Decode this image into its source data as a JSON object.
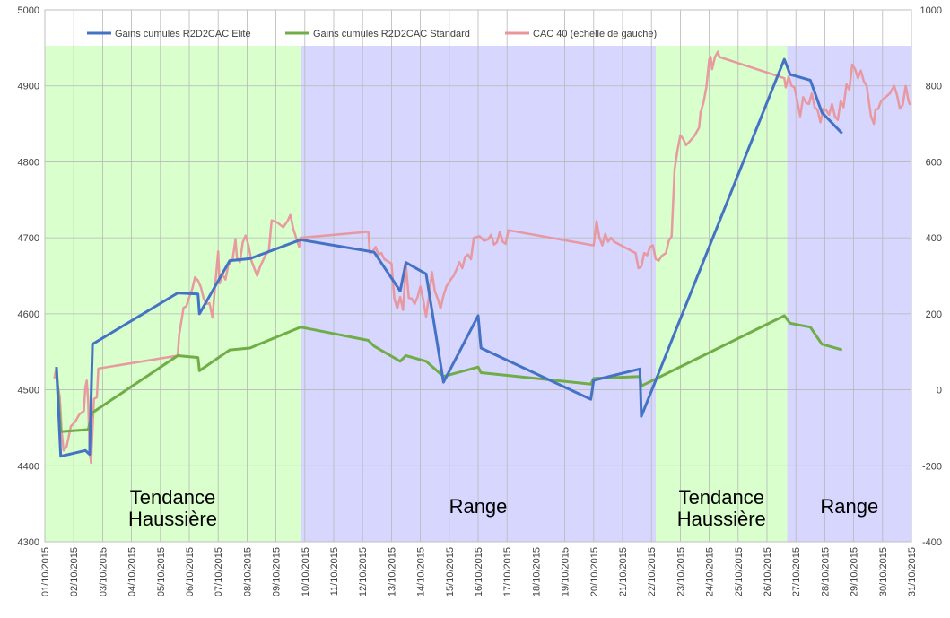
{
  "chart_data": {
    "type": "line",
    "x_axis": {
      "labels": [
        "01/10/2015",
        "02/10/2015",
        "03/10/2015",
        "04/10/2015",
        "05/10/2015",
        "06/10/2015",
        "07/10/2015",
        "08/10/2015",
        "09/10/2015",
        "10/10/2015",
        "11/10/2015",
        "12/10/2015",
        "13/10/2015",
        "14/10/2015",
        "15/10/2015",
        "16/10/2015",
        "17/10/2015",
        "18/10/2015",
        "19/10/2015",
        "20/10/2015",
        "21/10/2015",
        "22/10/2015",
        "23/10/2015",
        "24/10/2015",
        "25/10/2015",
        "26/10/2015",
        "27/10/2015",
        "28/10/2015",
        "29/10/2015",
        "30/10/2015",
        "31/10/2015"
      ],
      "xlim": [
        1,
        31
      ]
    },
    "y_left": {
      "ylim": [
        4300,
        5000
      ],
      "ticks": [
        "4300",
        "4400",
        "4500",
        "4600",
        "4700",
        "4800",
        "4900",
        "5000"
      ]
    },
    "y_right": {
      "ylim": [
        -400,
        1000
      ],
      "ticks": [
        "-400",
        "-200",
        "0",
        "200",
        "400",
        "600",
        "800",
        "1000"
      ]
    },
    "grid": true,
    "legend_position": "top",
    "zones": [
      {
        "label": [
          "Tendance",
          "Haussière"
        ],
        "start": 1.0,
        "end": 9.85,
        "color": "#d9ffcc"
      },
      {
        "label": [
          "Range"
        ],
        "start": 9.85,
        "end": 22.15,
        "color": "#d6d6ff"
      },
      {
        "label": [
          "Tendance",
          "Haussière"
        ],
        "start": 22.15,
        "end": 26.7,
        "color": "#d9ffcc"
      },
      {
        "label": [
          "Range"
        ],
        "start": 26.7,
        "end": 31.0,
        "color": "#d6d6ff"
      }
    ],
    "series": [
      {
        "name": "Gains cumulés R2D2CAC Elite",
        "axis": "right",
        "color": "#4472c4",
        "points": [
          [
            1.4,
            60
          ],
          [
            1.55,
            -175
          ],
          [
            2.4,
            -160
          ],
          [
            2.55,
            -170
          ],
          [
            2.65,
            120
          ],
          [
            5.6,
            255
          ],
          [
            6.3,
            252
          ],
          [
            6.35,
            200
          ],
          [
            7.4,
            340
          ],
          [
            8.1,
            345
          ],
          [
            9.85,
            395
          ],
          [
            12.2,
            365
          ],
          [
            12.4,
            362
          ],
          [
            13.3,
            260
          ],
          [
            13.5,
            335
          ],
          [
            14.2,
            305
          ],
          [
            14.8,
            20
          ],
          [
            16.0,
            195
          ],
          [
            16.1,
            110
          ],
          [
            19.9,
            -25
          ],
          [
            20.0,
            25
          ],
          [
            21.6,
            55
          ],
          [
            21.65,
            -70
          ],
          [
            26.6,
            870
          ],
          [
            26.8,
            830
          ],
          [
            27.5,
            815
          ],
          [
            27.9,
            730
          ],
          [
            28.6,
            675
          ]
        ]
      },
      {
        "name": "Gains cumulés R2D2CAC Standard",
        "axis": "right",
        "color": "#70ad47",
        "points": [
          [
            1.4,
            60
          ],
          [
            1.55,
            -110
          ],
          [
            2.5,
            -105
          ],
          [
            2.65,
            -60
          ],
          [
            5.6,
            90
          ],
          [
            6.3,
            85
          ],
          [
            6.35,
            50
          ],
          [
            7.4,
            105
          ],
          [
            8.1,
            110
          ],
          [
            9.85,
            165
          ],
          [
            12.2,
            130
          ],
          [
            12.4,
            115
          ],
          [
            13.3,
            75
          ],
          [
            13.5,
            90
          ],
          [
            14.2,
            75
          ],
          [
            14.8,
            35
          ],
          [
            16.0,
            60
          ],
          [
            16.1,
            45
          ],
          [
            19.9,
            15
          ],
          [
            20.0,
            30
          ],
          [
            21.6,
            35
          ],
          [
            21.65,
            10
          ],
          [
            26.6,
            195
          ],
          [
            26.8,
            175
          ],
          [
            27.5,
            165
          ],
          [
            27.9,
            120
          ],
          [
            28.6,
            105
          ]
        ]
      },
      {
        "name": "CAC 40 (échelle de gauche)",
        "axis": "left",
        "color": "#e8959c",
        "points": [
          [
            1.33,
            4515
          ],
          [
            1.38,
            4525
          ],
          [
            1.45,
            4505
          ],
          [
            1.52,
            4490
          ],
          [
            1.58,
            4445
          ],
          [
            1.65,
            4420
          ],
          [
            1.75,
            4425
          ],
          [
            1.9,
            4452
          ],
          [
            2.05,
            4458
          ],
          [
            2.2,
            4468
          ],
          [
            2.35,
            4472
          ],
          [
            2.4,
            4503
          ],
          [
            2.45,
            4512
          ],
          [
            2.5,
            4485
          ],
          [
            2.55,
            4418
          ],
          [
            2.6,
            4404
          ],
          [
            2.7,
            4488
          ],
          [
            2.8,
            4490
          ],
          [
            2.85,
            4528
          ],
          [
            5.6,
            4545
          ],
          [
            5.65,
            4572
          ],
          [
            5.8,
            4608
          ],
          [
            5.9,
            4610
          ],
          [
            6.0,
            4622
          ],
          [
            6.1,
            4632
          ],
          [
            6.2,
            4648
          ],
          [
            6.3,
            4644
          ],
          [
            6.4,
            4635
          ],
          [
            6.5,
            4620
          ],
          [
            6.6,
            4613
          ],
          [
            6.7,
            4614
          ],
          [
            6.8,
            4595
          ],
          [
            6.9,
            4640
          ],
          [
            7.0,
            4682
          ],
          [
            7.05,
            4640
          ],
          [
            7.15,
            4652
          ],
          [
            7.25,
            4645
          ],
          [
            7.35,
            4664
          ],
          [
            7.5,
            4672
          ],
          [
            7.6,
            4698
          ],
          [
            7.65,
            4674
          ],
          [
            7.75,
            4668
          ],
          [
            7.85,
            4694
          ],
          [
            7.95,
            4703
          ],
          [
            8.05,
            4690
          ],
          [
            8.15,
            4670
          ],
          [
            8.25,
            4660
          ],
          [
            8.35,
            4650
          ],
          [
            8.45,
            4662
          ],
          [
            8.55,
            4670
          ],
          [
            8.65,
            4678
          ],
          [
            8.75,
            4682
          ],
          [
            8.85,
            4723
          ],
          [
            9.05,
            4720
          ],
          [
            9.25,
            4714
          ],
          [
            9.4,
            4722
          ],
          [
            9.5,
            4730
          ],
          [
            9.6,
            4712
          ],
          [
            9.7,
            4700
          ],
          [
            9.8,
            4688
          ],
          [
            9.85,
            4700
          ],
          [
            12.2,
            4708
          ],
          [
            12.25,
            4680
          ],
          [
            12.35,
            4682
          ],
          [
            12.45,
            4688
          ],
          [
            12.55,
            4678
          ],
          [
            12.65,
            4680
          ],
          [
            12.75,
            4672
          ],
          [
            13.0,
            4666
          ],
          [
            13.1,
            4620
          ],
          [
            13.2,
            4607
          ],
          [
            13.3,
            4622
          ],
          [
            13.4,
            4605
          ],
          [
            13.5,
            4664
          ],
          [
            13.6,
            4621
          ],
          [
            13.7,
            4620
          ],
          [
            13.8,
            4613
          ],
          [
            13.9,
            4622
          ],
          [
            14.0,
            4636
          ],
          [
            14.1,
            4618
          ],
          [
            14.2,
            4596
          ],
          [
            14.3,
            4624
          ],
          [
            14.4,
            4655
          ],
          [
            14.5,
            4630
          ],
          [
            14.6,
            4620
          ],
          [
            14.7,
            4607
          ],
          [
            14.8,
            4624
          ],
          [
            14.9,
            4636
          ],
          [
            15.05,
            4645
          ],
          [
            15.15,
            4650
          ],
          [
            15.25,
            4658
          ],
          [
            15.35,
            4668
          ],
          [
            15.45,
            4660
          ],
          [
            15.55,
            4675
          ],
          [
            15.65,
            4678
          ],
          [
            15.75,
            4672
          ],
          [
            15.85,
            4700
          ],
          [
            16.05,
            4702
          ],
          [
            16.2,
            4696
          ],
          [
            16.35,
            4698
          ],
          [
            16.45,
            4704
          ],
          [
            16.55,
            4691
          ],
          [
            16.65,
            4694
          ],
          [
            16.75,
            4708
          ],
          [
            16.85,
            4695
          ],
          [
            16.95,
            4692
          ],
          [
            17.05,
            4710
          ],
          [
            20.0,
            4690
          ],
          [
            20.1,
            4722
          ],
          [
            20.2,
            4700
          ],
          [
            20.3,
            4690
          ],
          [
            20.4,
            4705
          ],
          [
            20.5,
            4695
          ],
          [
            20.6,
            4700
          ],
          [
            20.7,
            4695
          ],
          [
            21.45,
            4680
          ],
          [
            21.55,
            4660
          ],
          [
            21.65,
            4662
          ],
          [
            21.75,
            4680
          ],
          [
            21.85,
            4677
          ],
          [
            21.95,
            4688
          ],
          [
            22.05,
            4690
          ],
          [
            22.15,
            4672
          ],
          [
            22.25,
            4670
          ],
          [
            22.35,
            4676
          ],
          [
            22.5,
            4680
          ],
          [
            22.6,
            4696
          ],
          [
            22.7,
            4702
          ],
          [
            22.8,
            4790
          ],
          [
            22.9,
            4815
          ],
          [
            23.0,
            4835
          ],
          [
            23.1,
            4830
          ],
          [
            23.2,
            4822
          ],
          [
            23.35,
            4828
          ],
          [
            23.5,
            4835
          ],
          [
            23.65,
            4845
          ],
          [
            23.7,
            4865
          ],
          [
            23.8,
            4878
          ],
          [
            23.9,
            4898
          ],
          [
            24.0,
            4935
          ],
          [
            24.05,
            4938
          ],
          [
            24.1,
            4922
          ],
          [
            24.2,
            4938
          ],
          [
            24.3,
            4945
          ],
          [
            24.35,
            4938
          ],
          [
            26.6,
            4910
          ],
          [
            26.65,
            4898
          ],
          [
            26.75,
            4912
          ],
          [
            26.85,
            4900
          ],
          [
            26.95,
            4898
          ],
          [
            27.05,
            4880
          ],
          [
            27.15,
            4860
          ],
          [
            27.25,
            4885
          ],
          [
            27.35,
            4878
          ],
          [
            27.45,
            4876
          ],
          [
            27.55,
            4890
          ],
          [
            27.65,
            4872
          ],
          [
            27.75,
            4868
          ],
          [
            27.85,
            4852
          ],
          [
            27.95,
            4870
          ],
          [
            28.05,
            4868
          ],
          [
            28.15,
            4862
          ],
          [
            28.25,
            4876
          ],
          [
            28.35,
            4860
          ],
          [
            28.45,
            4855
          ],
          [
            28.55,
            4880
          ],
          [
            28.65,
            4872
          ],
          [
            28.75,
            4902
          ],
          [
            28.85,
            4895
          ],
          [
            28.95,
            4928
          ],
          [
            29.05,
            4922
          ],
          [
            29.15,
            4910
          ],
          [
            29.25,
            4920
          ],
          [
            29.35,
            4906
          ],
          [
            29.45,
            4900
          ],
          [
            29.6,
            4860
          ],
          [
            29.7,
            4850
          ],
          [
            29.75,
            4868
          ],
          [
            29.85,
            4870
          ],
          [
            29.95,
            4880
          ],
          [
            30.1,
            4885
          ],
          [
            30.25,
            4890
          ],
          [
            30.4,
            4900
          ],
          [
            30.5,
            4888
          ],
          [
            30.6,
            4870
          ],
          [
            30.7,
            4875
          ],
          [
            30.8,
            4900
          ],
          [
            30.9,
            4880
          ],
          [
            30.95,
            4875
          ]
        ]
      }
    ]
  }
}
